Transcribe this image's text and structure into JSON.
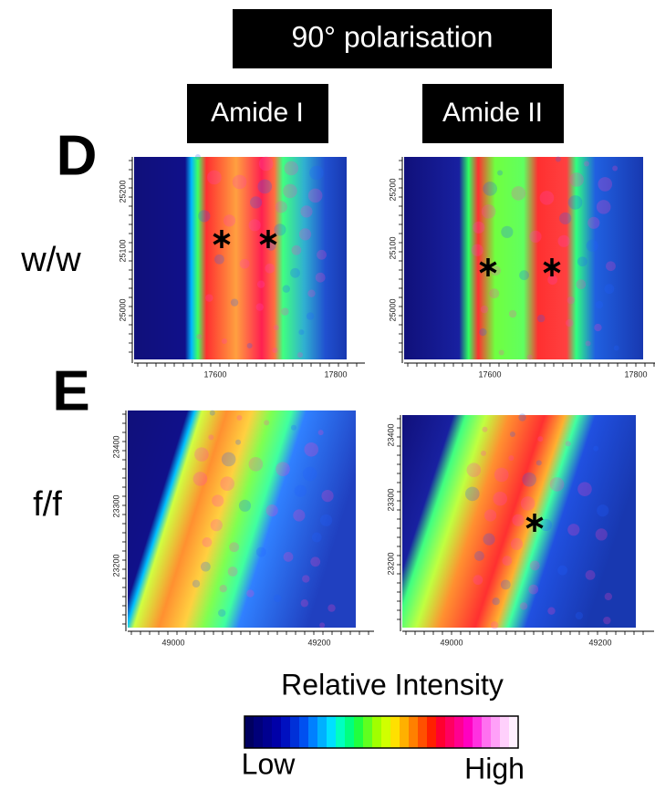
{
  "header": "90° polarisation",
  "columns": [
    "Amide I",
    "Amide II"
  ],
  "rows": [
    {
      "letter": "D",
      "label": "w/w",
      "panels": [
        {
          "yticks": [
            "25200",
            "25100",
            "25000"
          ],
          "xticks": [
            "17600",
            "17800"
          ]
        },
        {
          "yticks": [
            "25200",
            "25100",
            "25000"
          ],
          "xticks": [
            "17600",
            "17800"
          ]
        }
      ]
    },
    {
      "letter": "E",
      "label": "f/f",
      "panels": [
        {
          "yticks": [
            "23400",
            "23300",
            "23200"
          ],
          "xticks": [
            "49000",
            "49200"
          ]
        },
        {
          "yticks": [
            "23400",
            "23300",
            "23200"
          ],
          "xticks": [
            "49000",
            "49200"
          ]
        }
      ]
    }
  ],
  "colorbar": {
    "title": "Relative Intensity",
    "low": "Low",
    "high": "High"
  }
}
